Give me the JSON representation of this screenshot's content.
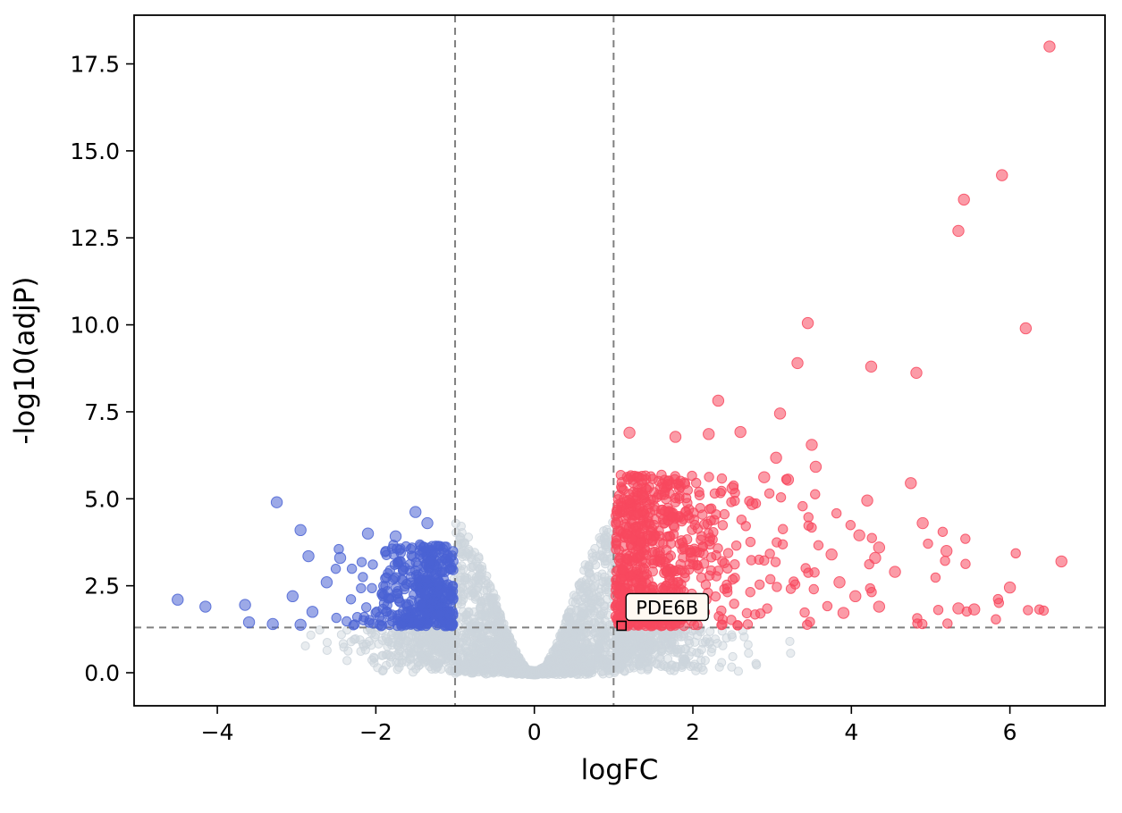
{
  "chart_data": {
    "type": "scatter",
    "title": "",
    "xlabel": "logFC",
    "ylabel": "-log10(adjP)",
    "xlim": [
      -5.05,
      7.2
    ],
    "ylim": [
      -0.95,
      18.9
    ],
    "xticks": [
      -4,
      -2,
      0,
      2,
      4,
      6
    ],
    "xtick_labels": [
      "−4",
      "−2",
      "0",
      "2",
      "4",
      "6"
    ],
    "yticks": [
      0.0,
      2.5,
      5.0,
      7.5,
      10.0,
      12.5,
      15.0,
      17.5
    ],
    "ytick_labels": [
      "0.0",
      "2.5",
      "5.0",
      "7.5",
      "10.0",
      "12.5",
      "15.0",
      "17.5"
    ],
    "grid": false,
    "legend": null,
    "thresholds": {
      "vlines": [
        -1,
        1
      ],
      "hline": 1.301,
      "line_color": "#808080",
      "dash": "8 6",
      "line_width": 2
    },
    "colors": {
      "up": "#f8485e",
      "down": "#4a63d3",
      "nonsig": "#ccd5dc",
      "frame": "#000000",
      "background": "#ffffff"
    },
    "opacity": {
      "up": 0.55,
      "down": 0.55,
      "nonsig": 0.45
    },
    "marker_radius": {
      "cluster": 5.2,
      "outlier": 6.2,
      "nonsig": 4.6
    },
    "seed": 42,
    "clusters": [
      {
        "name": "nonsig-cloud",
        "group": "nonsig",
        "count": 2400,
        "x_sigma": 0.95,
        "x_clip": 4.3,
        "envelope_height": 4.9,
        "envelope_width": 0.42,
        "inner_limit": 1.02,
        "outer_ymax": 1.3
      },
      {
        "name": "downregulated",
        "group": "down",
        "count": 430,
        "x_start": -1.02,
        "x_sigma": 0.48,
        "x_clip": -2.75,
        "y_min": 1.34,
        "y_span": 2.35,
        "y_pow": 1.6
      },
      {
        "name": "upregulated",
        "group": "up",
        "count": 760,
        "x_start": 1.02,
        "x_sigma": 0.62,
        "x_clip": 3.72,
        "uniform_frac": 0.15,
        "uniform_span": 2.6,
        "y_min": 1.34,
        "y_span": 4.35,
        "y_pow": 1.35,
        "y_max": 5.7
      },
      {
        "name": "upregulated-sparse",
        "group": "up",
        "count": 26,
        "x_uniform_min": 3.6,
        "x_uniform_span": 2.9,
        "y_min": 1.4,
        "y_span": 3.6,
        "y_pow": 1.8
      }
    ],
    "outliers": {
      "up": [
        [
          6.5,
          18.0
        ],
        [
          5.9,
          14.3
        ],
        [
          5.42,
          13.6
        ],
        [
          5.35,
          12.7
        ],
        [
          6.2,
          9.9
        ],
        [
          3.45,
          10.05
        ],
        [
          4.25,
          8.8
        ],
        [
          3.32,
          8.9
        ],
        [
          4.82,
          8.62
        ],
        [
          2.32,
          7.82
        ],
        [
          3.1,
          7.45
        ],
        [
          1.2,
          6.9
        ],
        [
          1.78,
          6.78
        ],
        [
          2.2,
          6.86
        ],
        [
          2.6,
          6.92
        ],
        [
          3.5,
          6.55
        ],
        [
          3.05,
          6.18
        ],
        [
          3.55,
          5.92
        ],
        [
          2.9,
          5.62
        ],
        [
          3.2,
          5.55
        ],
        [
          4.75,
          5.45
        ],
        [
          4.2,
          4.95
        ],
        [
          4.9,
          4.3
        ],
        [
          4.1,
          3.95
        ],
        [
          4.35,
          3.6
        ],
        [
          5.2,
          3.5
        ],
        [
          6.65,
          3.2
        ],
        [
          6.0,
          2.45
        ],
        [
          5.35,
          1.85
        ],
        [
          5.55,
          1.82
        ],
        [
          4.35,
          1.9
        ],
        [
          3.9,
          1.72
        ],
        [
          4.55,
          2.9
        ],
        [
          4.3,
          3.3
        ],
        [
          3.75,
          3.4
        ],
        [
          3.85,
          2.6
        ],
        [
          4.05,
          2.2
        ],
        [
          2.75,
          4.85
        ],
        [
          2.5,
          5.3
        ],
        [
          1.35,
          5.55
        ],
        [
          1.6,
          5.3
        ]
      ],
      "down": [
        [
          -3.25,
          4.9
        ],
        [
          -2.95,
          4.1
        ],
        [
          -1.5,
          4.62
        ],
        [
          -1.35,
          4.3
        ],
        [
          -2.1,
          4.0
        ],
        [
          -1.75,
          3.92
        ],
        [
          -2.45,
          3.3
        ],
        [
          -2.85,
          3.35
        ],
        [
          -2.62,
          2.6
        ],
        [
          -4.5,
          2.1
        ],
        [
          -4.15,
          1.9
        ],
        [
          -3.65,
          1.95
        ],
        [
          -3.6,
          1.45
        ],
        [
          -3.3,
          1.4
        ],
        [
          -2.95,
          1.38
        ],
        [
          -3.05,
          2.2
        ],
        [
          -2.8,
          1.75
        ]
      ]
    },
    "annotation": {
      "label": "PDE6B",
      "x": 1.1,
      "y": 1.35,
      "marker_color": "#f8485e",
      "marker_edge": "#000000",
      "box_fill": "#fff9f2",
      "box_border": "#000000"
    }
  }
}
